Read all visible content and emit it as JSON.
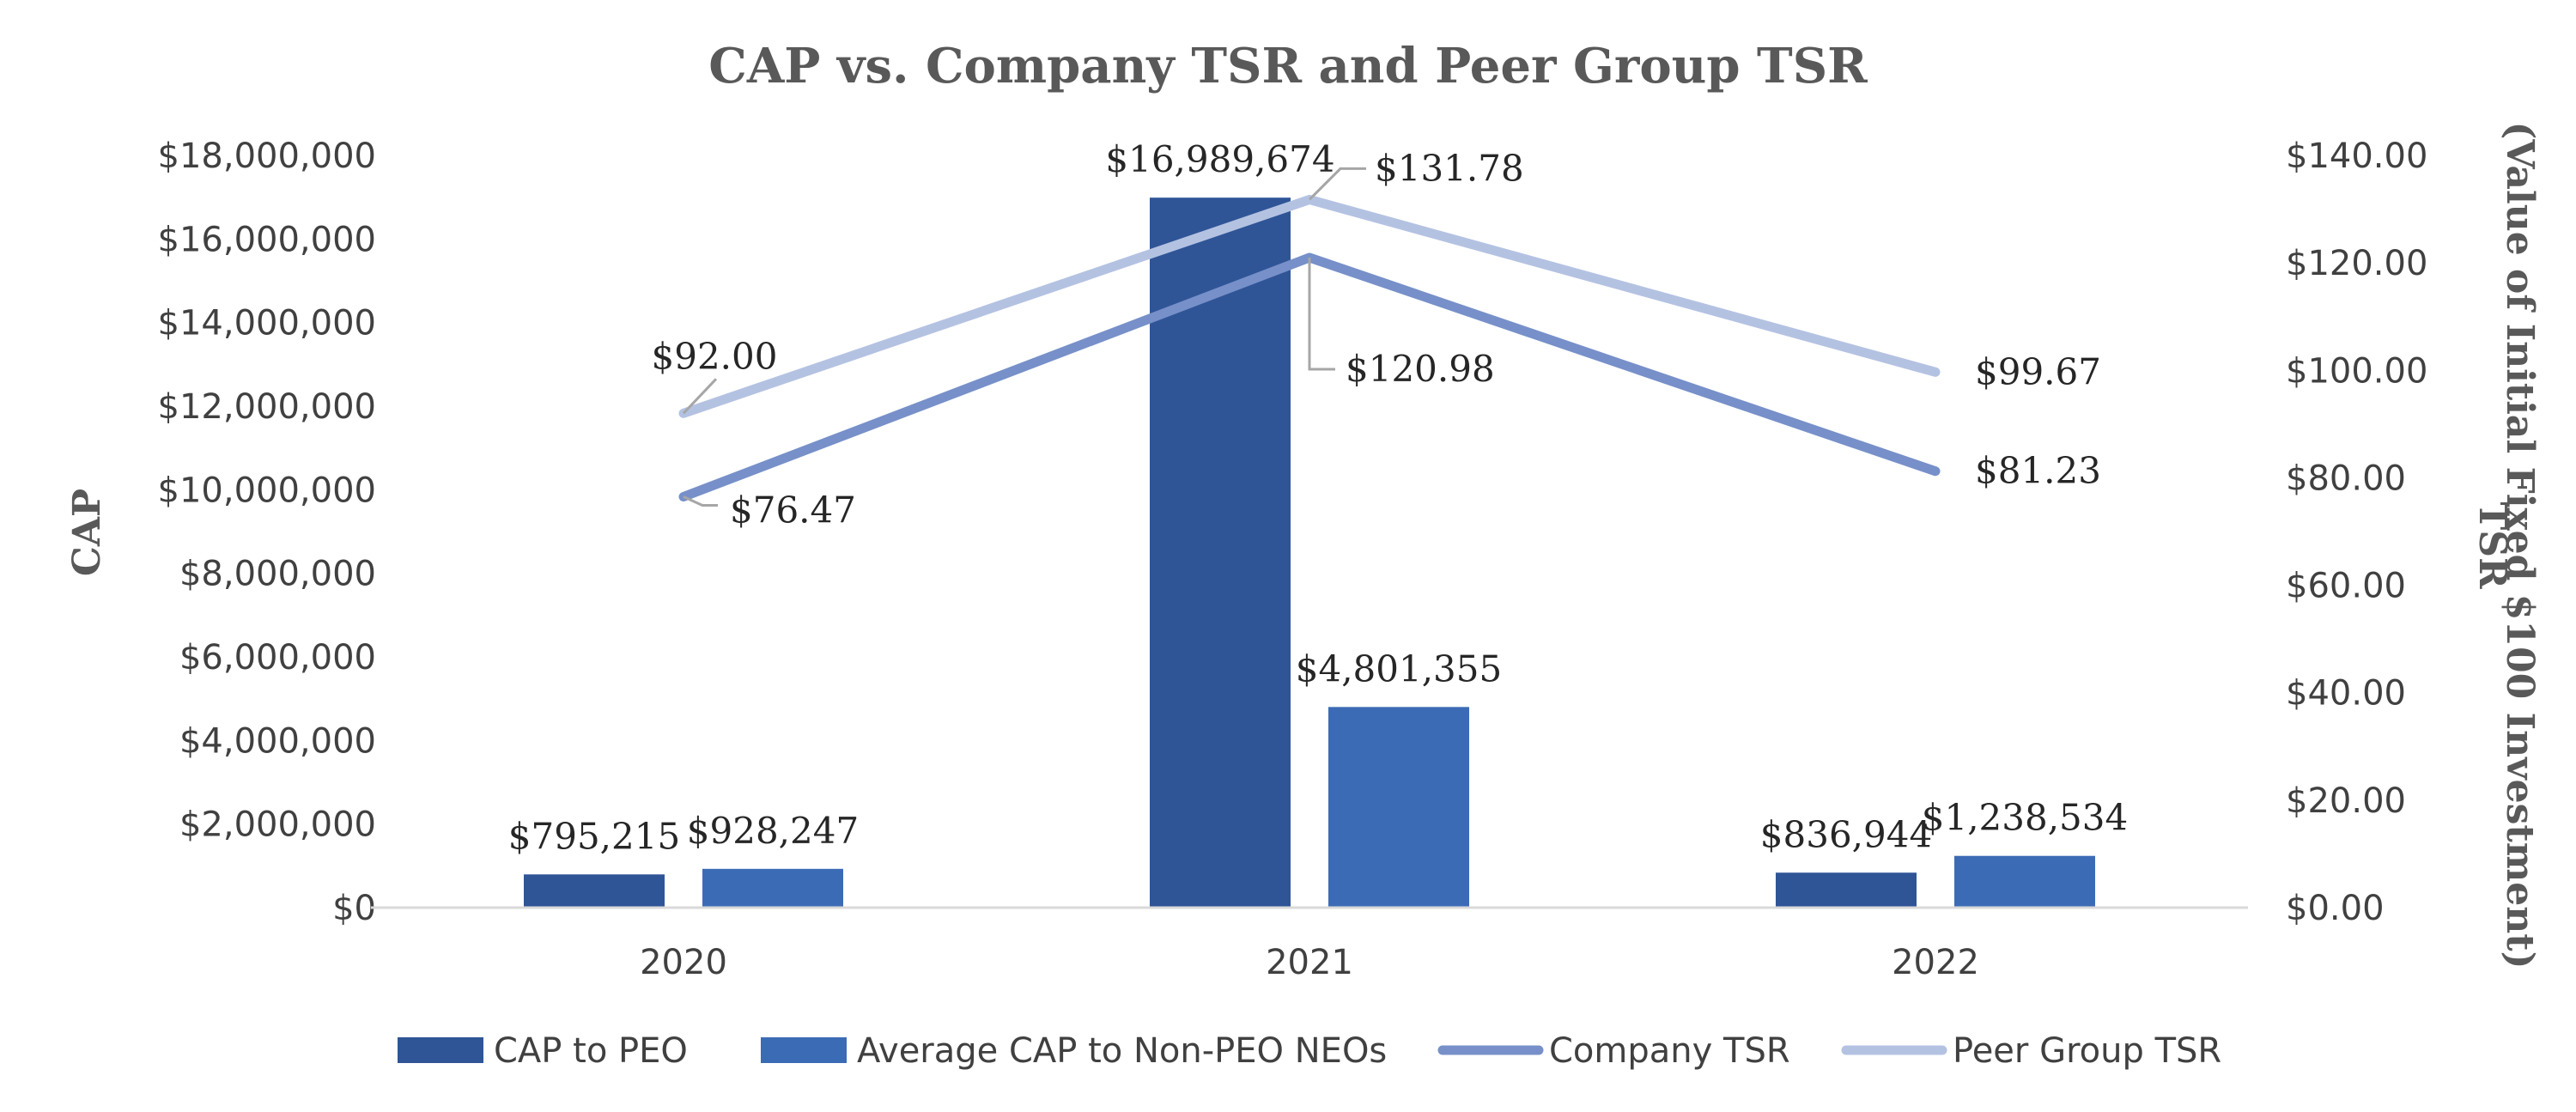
{
  "chart_data": {
    "type": "bar",
    "title": "CAP vs. Company TSR and Peer Group TSR",
    "categories": [
      "2020",
      "2021",
      "2022"
    ],
    "ylabel": "CAP",
    "y2label_line1": "TSR",
    "y2label_line2": "(Value of Initial Fixed $100 Investment)",
    "ylim": [
      0,
      18000000
    ],
    "y2lim": [
      0,
      140
    ],
    "yticks": [
      "$0",
      "$2,000,000",
      "$4,000,000",
      "$6,000,000",
      "$8,000,000",
      "$10,000,000",
      "$12,000,000",
      "$14,000,000",
      "$16,000,000",
      "$18,000,000"
    ],
    "y2ticks": [
      "$0.00",
      "$20.00",
      "$40.00",
      "$60.00",
      "$80.00",
      "$100.00",
      "$120.00",
      "$140.00"
    ],
    "legend_position": "bottom",
    "bar_series": [
      {
        "name": "CAP to PEO",
        "color": "#2f5597",
        "values": [
          795215,
          16989674,
          836944
        ],
        "labels": [
          "$795,215",
          "$16,989,674",
          "$836,944"
        ]
      },
      {
        "name": "Average CAP to Non-PEO NEOs",
        "color": "#3c6bb5",
        "values": [
          928247,
          4801355,
          1238534
        ],
        "labels": [
          "$928,247",
          "$4,801,355",
          "$1,238,534"
        ]
      }
    ],
    "line_series": [
      {
        "name": "Company TSR",
        "color": "#7790c9",
        "values": [
          76.47,
          120.98,
          81.23
        ],
        "labels": [
          "$76.47",
          "$120.98",
          "$81.23"
        ]
      },
      {
        "name": "Peer Group TSR",
        "color": "#b4c2e2",
        "values": [
          92.0,
          131.78,
          99.67
        ],
        "labels": [
          "$92.00",
          "$131.78",
          "$99.67"
        ]
      }
    ]
  }
}
